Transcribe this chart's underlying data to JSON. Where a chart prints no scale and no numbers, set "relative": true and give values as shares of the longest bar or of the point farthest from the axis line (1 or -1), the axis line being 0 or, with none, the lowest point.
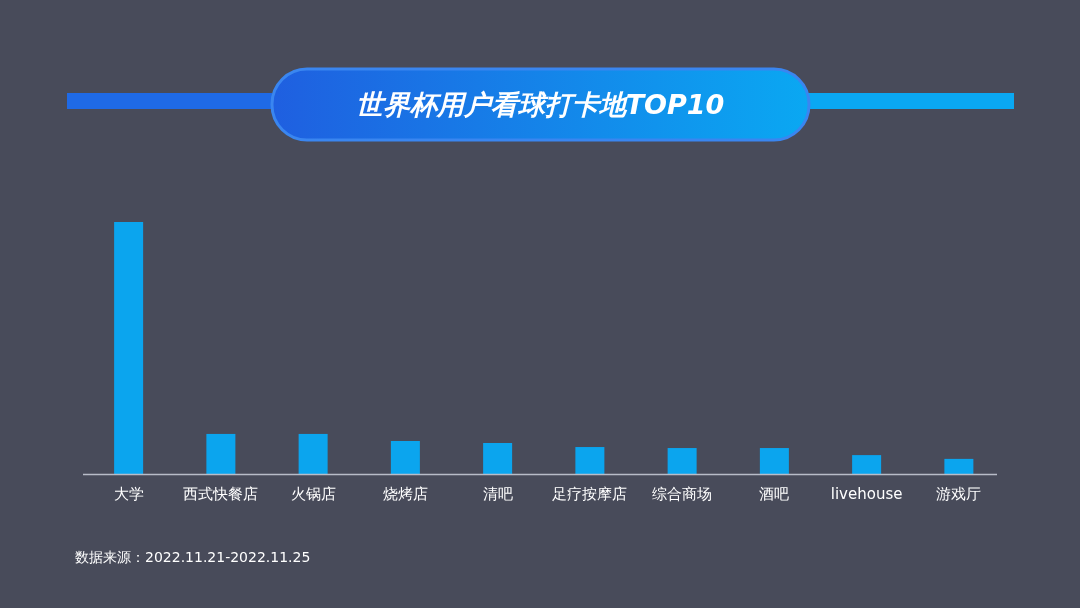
{
  "chart_data": {
    "type": "bar",
    "title": "世界杯用户看球打卡地TOP10",
    "categories": [
      "大学",
      "西式快餐店",
      "火锅店",
      "烧烤店",
      "清吧",
      "足疗按摩店",
      "综合商场",
      "酒吧",
      "livehouse",
      "游戏厅"
    ],
    "values": [
      1,
      0.159,
      0.159,
      0.131,
      0.123,
      0.107,
      0.103,
      0.103,
      0.075,
      0.06
    ],
    "color": "#0ba5ee",
    "relative": true,
    "annotations": [
      "数据来源：2022.11.21-2022.11.25"
    ]
  }
}
